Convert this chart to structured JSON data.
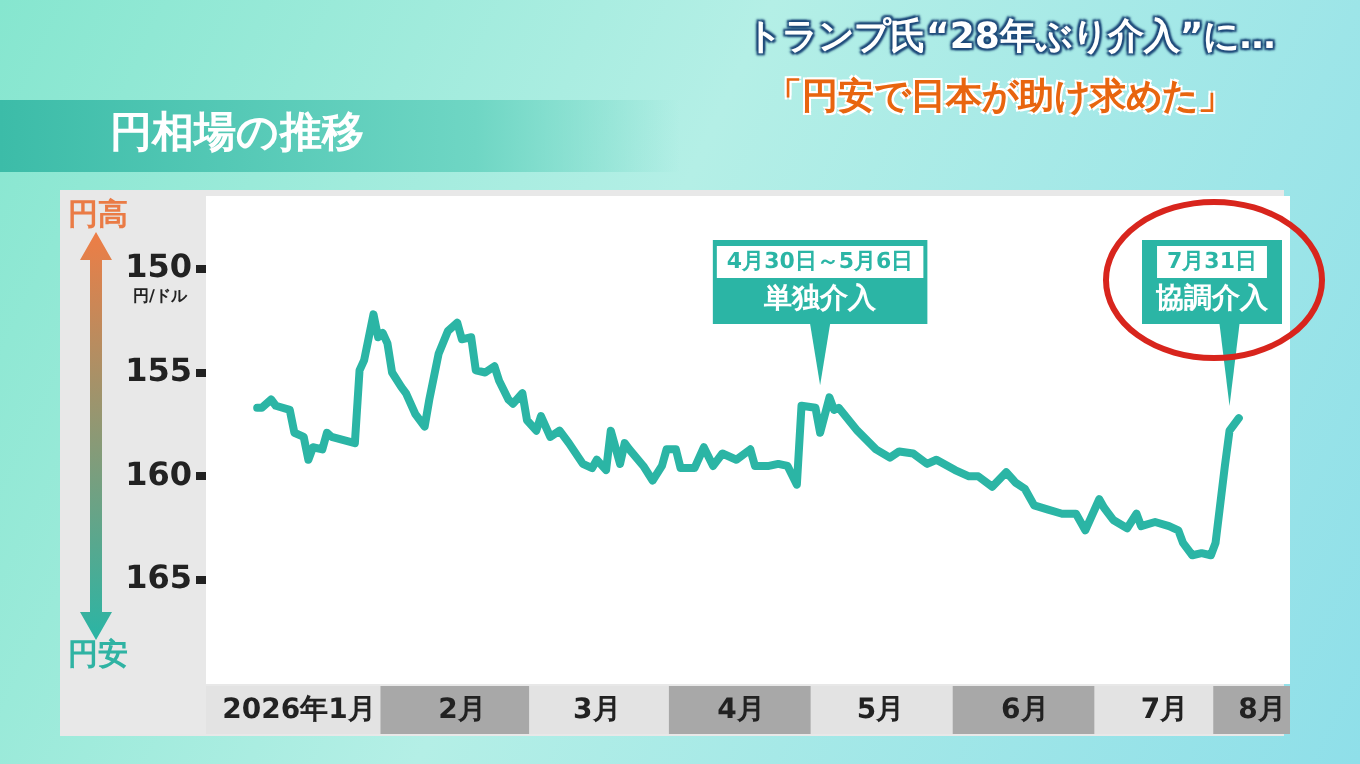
{
  "chart_data": {
    "type": "line",
    "title": "円相場の推移",
    "ylabel": "円/ドル",
    "annotations": [
      "トランプ氏“28年ぶり介入”に…",
      "「円安で日本が助け求めた」",
      "円高",
      "円安",
      "4月30日～5月6日",
      "7月31日",
      {
        "text": "単独介入",
        "x": "2026-05-03",
        "y": 156.0
      },
      {
        "text": "協調介入",
        "x": "2026-07-30",
        "y": 157.0
      }
    ],
    "x": [
      "2026-01-02",
      "2026-01-03",
      "2026-01-05",
      "2026-01-06",
      "2026-01-09",
      "2026-01-10",
      "2026-01-12",
      "2026-01-13",
      "2026-01-14",
      "2026-01-16",
      "2026-01-17",
      "2026-01-18",
      "2026-01-23",
      "2026-01-24",
      "2026-01-25",
      "2026-01-27",
      "2026-01-28",
      "2026-01-29",
      "2026-01-30",
      "2026-01-31",
      "2026-02-02",
      "2026-02-03",
      "2026-02-05",
      "2026-02-07",
      "2026-02-08",
      "2026-02-10",
      "2026-02-12",
      "2026-02-14",
      "2026-02-15",
      "2026-02-17",
      "2026-02-18",
      "2026-02-20",
      "2026-02-22",
      "2026-02-23",
      "2026-02-25",
      "2026-02-26",
      "2026-02-28",
      "2026-03-01",
      "2026-03-03",
      "2026-03-04",
      "2026-03-06",
      "2026-03-08",
      "2026-03-10",
      "2026-03-13",
      "2026-03-15",
      "2026-03-16",
      "2026-03-18",
      "2026-03-19",
      "2026-03-21",
      "2026-03-22",
      "2026-03-23",
      "2026-03-26",
      "2026-03-28",
      "2026-03-30",
      "2026-03-31",
      "2026-04-02",
      "2026-04-03",
      "2026-04-06",
      "2026-04-08",
      "2026-04-10",
      "2026-04-12",
      "2026-04-15",
      "2026-04-18",
      "2026-04-19",
      "2026-04-22",
      "2026-04-24",
      "2026-04-26",
      "2026-04-28",
      "2026-04-29",
      "2026-05-02",
      "2026-05-03",
      "2026-05-05",
      "2026-05-06",
      "2026-05-07",
      "2026-05-11",
      "2026-05-15",
      "2026-05-18",
      "2026-05-20",
      "2026-05-23",
      "2026-05-26",
      "2026-05-28",
      "2026-06-01",
      "2026-06-04",
      "2026-06-06",
      "2026-06-09",
      "2026-06-12",
      "2026-06-14",
      "2026-06-16",
      "2026-06-18",
      "2026-06-21",
      "2026-06-24",
      "2026-06-27",
      "2026-06-29",
      "2026-07-02",
      "2026-07-03",
      "2026-07-05",
      "2026-07-08",
      "2026-07-10",
      "2026-07-11",
      "2026-07-14",
      "2026-07-17",
      "2026-07-19",
      "2026-07-20",
      "2026-07-22",
      "2026-07-24",
      "2026-07-26",
      "2026-07-27",
      "2026-07-29",
      "2026-07-30",
      "2026-08-01"
    ],
    "values": [
      156.7,
      156.7,
      156.3,
      156.6,
      156.8,
      157.9,
      158.1,
      159.2,
      158.6,
      158.7,
      157.9,
      158.1,
      158.4,
      154.9,
      154.4,
      152.2,
      153.3,
      153.1,
      153.6,
      155.0,
      155.7,
      156.0,
      157.0,
      157.6,
      156.3,
      154.1,
      153.0,
      152.6,
      153.4,
      153.3,
      154.9,
      155.0,
      154.7,
      155.4,
      156.3,
      156.5,
      156.0,
      157.3,
      157.8,
      157.1,
      158.1,
      157.8,
      158.4,
      159.4,
      159.6,
      159.2,
      159.7,
      157.8,
      159.4,
      158.4,
      158.7,
      159.5,
      160.2,
      159.5,
      158.7,
      158.7,
      159.6,
      159.6,
      158.6,
      159.5,
      158.9,
      159.2,
      158.7,
      159.5,
      159.5,
      159.4,
      159.5,
      160.4,
      156.6,
      156.7,
      157.9,
      156.2,
      156.8,
      156.7,
      157.8,
      158.7,
      159.1,
      158.8,
      158.9,
      159.4,
      159.2,
      159.7,
      160.0,
      160.0,
      160.5,
      159.8,
      160.3,
      160.6,
      161.4,
      161.6,
      161.8,
      161.8,
      162.6,
      161.1,
      161.5,
      162.1,
      162.5,
      161.8,
      162.4,
      162.2,
      162.4,
      162.6,
      163.2,
      163.8,
      163.7,
      163.8,
      163.2,
      159.5,
      157.8,
      157.2
    ],
    "color": "#2bb5a5",
    "marker": "none",
    "ylim": [
      170,
      146.5
    ],
    "yticks": [
      150,
      155,
      160,
      165
    ],
    "xlim": [
      "2025-12-22",
      "2026-08-12"
    ],
    "xticks": [
      {
        "value": "2026-01-11",
        "label": "2026年1月"
      },
      {
        "value": "2026-02-15",
        "label": "2月"
      },
      {
        "value": "2026-03-16",
        "label": "3月"
      },
      {
        "value": "2026-04-16",
        "label": "4月"
      },
      {
        "value": "2026-05-16",
        "label": "5月"
      },
      {
        "value": "2026-06-16",
        "label": "6月"
      },
      {
        "value": "2026-07-16",
        "label": "7月"
      },
      {
        "value": "2026-08-06",
        "label": "8月"
      }
    ]
  }
}
